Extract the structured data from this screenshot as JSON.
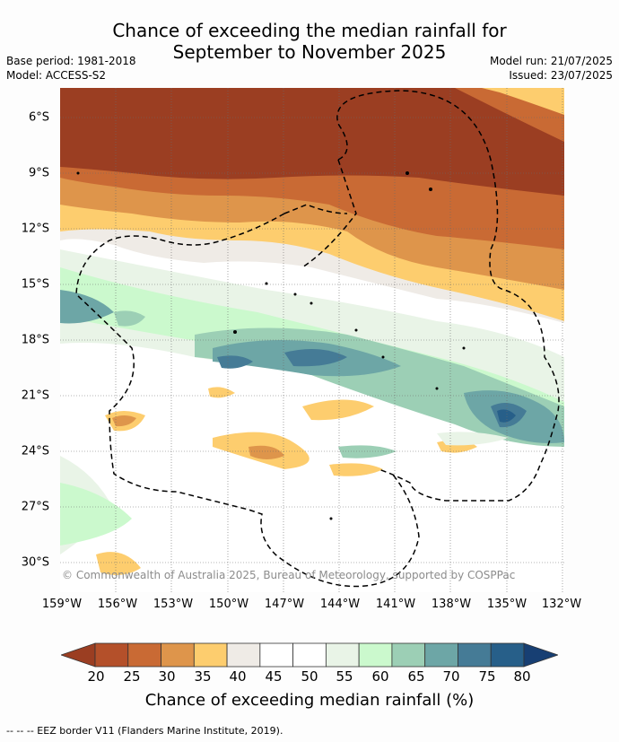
{
  "title_line1": "Chance of exceeding the median rainfall for",
  "title_line2": "September to November 2025",
  "base_period": "Base period: 1981-2018",
  "model": "Model: ACCESS-S2",
  "model_run": "Model run: 21/07/2025",
  "issued": "Issued: 23/07/2025",
  "lat_labels": [
    "6°S",
    "9°S",
    "12°S",
    "15°S",
    "18°S",
    "21°S",
    "24°S",
    "27°S",
    "30°S"
  ],
  "lon_labels": [
    "159°W",
    "156°W",
    "153°W",
    "150°W",
    "147°W",
    "144°W",
    "141°W",
    "138°W",
    "135°W",
    "132°W"
  ],
  "copyright": "© Commonwealth of Australia 2025, Bureau of Meteorology, supported by COSPPac",
  "colorbar": {
    "ticks": [
      "20",
      "25",
      "30",
      "35",
      "40",
      "45",
      "50",
      "55",
      "60",
      "65",
      "70",
      "75",
      "80"
    ],
    "colors": [
      "#9b3e22",
      "#b4502a",
      "#c96a34",
      "#de954b",
      "#fdcd6e",
      "#efebe6",
      "#ffffff",
      "#ffffff",
      "#e9f4e7",
      "#cbf9cd",
      "#9ccfb5",
      "#6da6a6",
      "#457b96",
      "#275f89",
      "#173f73"
    ],
    "label": "Chance of exceeding median rainfall (%)"
  },
  "footer": "--  --  -- EEZ border V11 (Flanders Marine Institute, 2019)."
}
